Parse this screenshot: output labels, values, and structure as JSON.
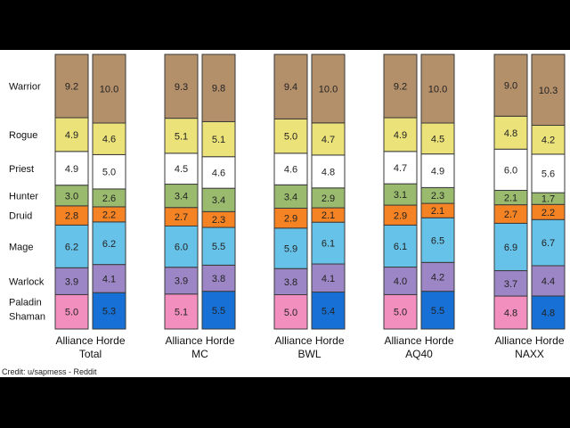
{
  "chart_data": {
    "type": "bar",
    "stacked": true,
    "normalized": true,
    "class_order": [
      "Warrior",
      "Rogue",
      "Priest",
      "Hunter",
      "Druid",
      "Mage",
      "Warlock",
      "Paladin",
      "Shaman"
    ],
    "stack_order_bottom_to_top": [
      "Paladin / Shaman",
      "Warlock",
      "Mage",
      "Druid",
      "Hunter",
      "Priest",
      "Rogue",
      "Warrior"
    ],
    "colors": {
      "Warrior": "#b38f6a",
      "Rogue": "#ece27a",
      "Priest": "#ffffff",
      "Hunter": "#9abb6e",
      "Druid": "#f58323",
      "Mage": "#66c2e8",
      "Warlock": "#9d86c6",
      "Paladin": "#f28fbe",
      "Shaman": "#1670d6"
    },
    "groups": [
      {
        "name": "Total",
        "bars": [
          {
            "faction": "Alliance",
            "hybrid": "Paladin",
            "segments": {
              "Paladin / Shaman": 5.0,
              "Warlock": 3.9,
              "Mage": 6.2,
              "Druid": 2.8,
              "Hunter": 3.0,
              "Priest": 4.9,
              "Rogue": 4.9,
              "Warrior": 9.2
            }
          },
          {
            "faction": "Horde",
            "hybrid": "Shaman",
            "segments": {
              "Paladin / Shaman": 5.3,
              "Warlock": 4.1,
              "Mage": 6.2,
              "Druid": 2.2,
              "Hunter": 2.6,
              "Priest": 5.0,
              "Rogue": 4.6,
              "Warrior": 10.0
            }
          }
        ]
      },
      {
        "name": "MC",
        "bars": [
          {
            "faction": "Alliance",
            "hybrid": "Paladin",
            "segments": {
              "Paladin / Shaman": 5.1,
              "Warlock": 3.9,
              "Mage": 6.0,
              "Druid": 2.7,
              "Hunter": 3.4,
              "Priest": 4.5,
              "Rogue": 5.1,
              "Warrior": 9.3
            }
          },
          {
            "faction": "Horde",
            "hybrid": "Shaman",
            "segments": {
              "Paladin / Shaman": 5.5,
              "Warlock": 3.8,
              "Mage": 5.5,
              "Druid": 2.3,
              "Hunter": 3.4,
              "Priest": 4.6,
              "Rogue": 5.1,
              "Warrior": 9.8
            }
          }
        ]
      },
      {
        "name": "BWL",
        "bars": [
          {
            "faction": "Alliance",
            "hybrid": "Paladin",
            "segments": {
              "Paladin / Shaman": 5.0,
              "Warlock": 3.8,
              "Mage": 5.9,
              "Druid": 2.9,
              "Hunter": 3.4,
              "Priest": 4.6,
              "Rogue": 5.0,
              "Warrior": 9.4
            }
          },
          {
            "faction": "Horde",
            "hybrid": "Shaman",
            "segments": {
              "Paladin / Shaman": 5.4,
              "Warlock": 4.1,
              "Mage": 6.1,
              "Druid": 2.1,
              "Hunter": 2.9,
              "Priest": 4.8,
              "Rogue": 4.7,
              "Warrior": 10.0
            }
          }
        ]
      },
      {
        "name": "AQ40",
        "bars": [
          {
            "faction": "Alliance",
            "hybrid": "Paladin",
            "segments": {
              "Paladin / Shaman": 5.0,
              "Warlock": 4.0,
              "Mage": 6.1,
              "Druid": 2.9,
              "Hunter": 3.1,
              "Priest": 4.7,
              "Rogue": 4.9,
              "Warrior": 9.2
            }
          },
          {
            "faction": "Horde",
            "hybrid": "Shaman",
            "segments": {
              "Paladin / Shaman": 5.5,
              "Warlock": 4.2,
              "Mage": 6.5,
              "Druid": 2.1,
              "Hunter": 2.3,
              "Priest": 4.9,
              "Rogue": 4.5,
              "Warrior": 10.0
            }
          }
        ]
      },
      {
        "name": "NAXX",
        "bars": [
          {
            "faction": "Alliance",
            "hybrid": "Paladin",
            "segments": {
              "Paladin / Shaman": 4.8,
              "Warlock": 3.7,
              "Mage": 6.9,
              "Druid": 2.7,
              "Hunter": 2.1,
              "Priest": 6.0,
              "Rogue": 4.8,
              "Warrior": 9.0
            }
          },
          {
            "faction": "Horde",
            "hybrid": "Shaman",
            "segments": {
              "Paladin / Shaman": 4.8,
              "Warlock": 4.4,
              "Mage": 6.7,
              "Druid": 2.2,
              "Hunter": 1.7,
              "Priest": 5.6,
              "Rogue": 4.2,
              "Warrior": 10.3
            }
          }
        ]
      }
    ],
    "credit": "Credit: u/sapmess - Reddit"
  }
}
